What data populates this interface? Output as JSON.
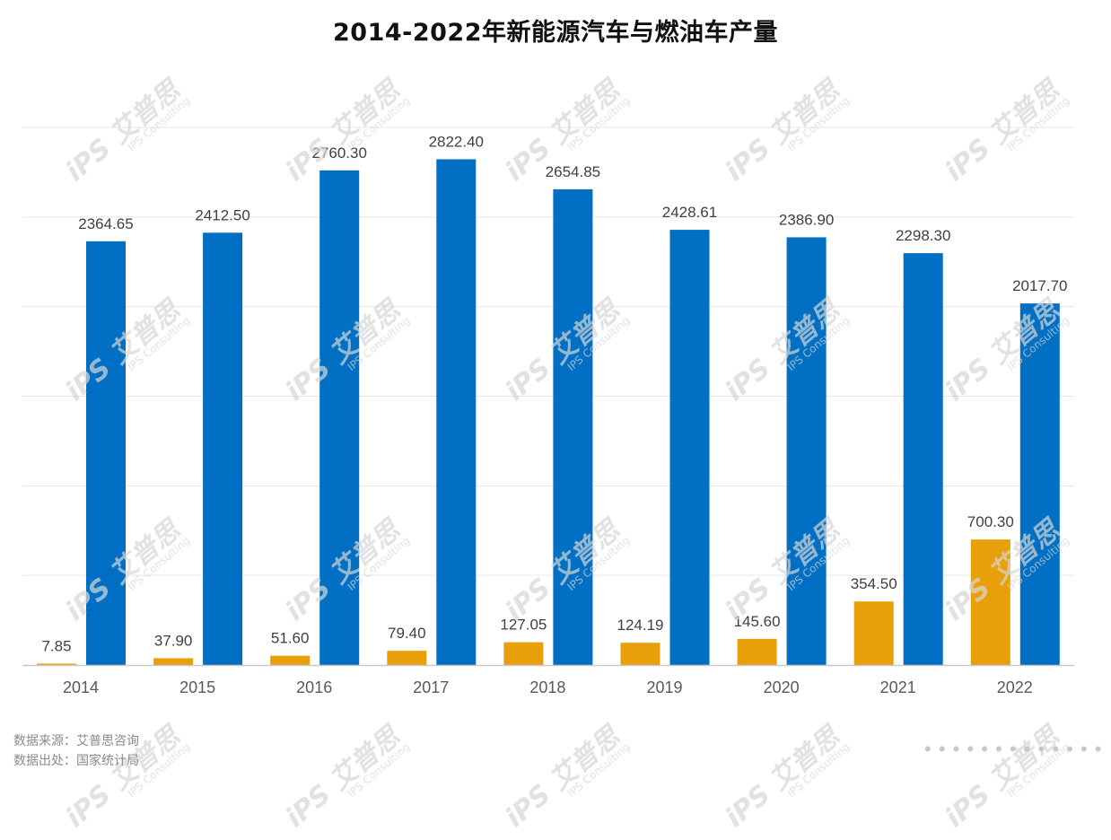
{
  "chart_data": {
    "type": "bar",
    "title": "2014-2022年新能源汽车与燃油车产量",
    "categories": [
      "2014",
      "2015",
      "2016",
      "2017",
      "2018",
      "2019",
      "2020",
      "2021",
      "2022"
    ],
    "series": [
      {
        "values": [
          7.85,
          37.9,
          51.6,
          79.4,
          127.05,
          124.19,
          145.6,
          354.5,
          700.3
        ],
        "labels": [
          "7.85",
          "37.90",
          "51.60",
          "79.40",
          "127.05",
          "124.19",
          "145.60",
          "354.50",
          "700.30"
        ],
        "color": "#E8A00A"
      },
      {
        "values": [
          2364.65,
          2412.5,
          2760.3,
          2822.4,
          2654.85,
          2428.61,
          2386.9,
          2298.3,
          2017.7
        ],
        "labels": [
          "2364.65",
          "2412.50",
          "2760.30",
          "2822.40",
          "2654.85",
          "2428.61",
          "2386.90",
          "2298.30",
          "2017.70"
        ],
        "color": "#006FC4"
      }
    ],
    "ylim": [
      0,
      3000
    ],
    "grid": true,
    "legend": "none"
  },
  "footer": {
    "source": "数据来源：艾普思咨询",
    "origin": "数据出处：国家统计局"
  },
  "watermark": {
    "main": "iPS 艾普思",
    "sub": "IPS Consulting"
  }
}
